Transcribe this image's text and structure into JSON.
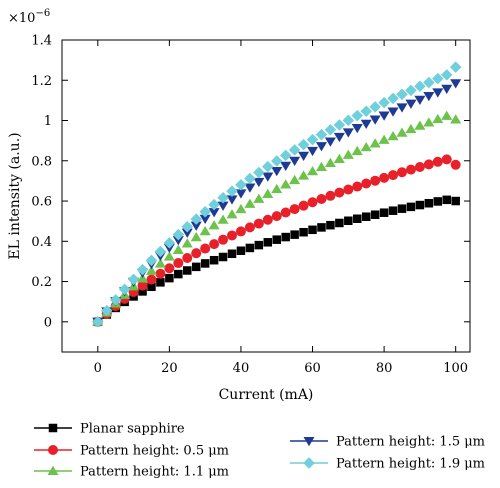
{
  "chart_data": {
    "type": "scatter",
    "title": "",
    "xlabel": "Current (mA)",
    "ylabel": "EL intensity (a.u.)",
    "y_multiplier": "×10",
    "y_exponent": "−6",
    "xlim": [
      -10,
      104
    ],
    "ylim": [
      -0.15,
      1.4
    ],
    "x_ticks": [
      0,
      20,
      40,
      60,
      80,
      100
    ],
    "x_tick_labels": [
      "0",
      "20",
      "40",
      "60",
      "80",
      "100"
    ],
    "y_ticks": [
      0,
      0.2,
      0.4,
      0.6,
      0.8,
      1.0,
      1.2,
      1.4
    ],
    "y_tick_labels": [
      "0",
      "0.2",
      "0.4",
      "0.6",
      "0.8",
      "1",
      "1.2",
      "1.4"
    ],
    "grid": false,
    "legend_position": "bottom",
    "x": [
      0,
      2.5,
      5,
      7.5,
      10,
      12.5,
      15,
      17.5,
      20,
      22.5,
      25,
      27.5,
      30,
      32.5,
      35,
      37.5,
      40,
      42.5,
      45,
      47.5,
      50,
      52.5,
      55,
      57.5,
      60,
      62.5,
      65,
      67.5,
      70,
      72.5,
      75,
      77.5,
      80,
      82.5,
      85,
      87.5,
      90,
      92.5,
      95,
      97.5,
      100
    ],
    "series": [
      {
        "name": "Planar sapphire",
        "marker": "square",
        "color": "#000000",
        "values": [
          0.0,
          0.036,
          0.069,
          0.099,
          0.126,
          0.151,
          0.174,
          0.196,
          0.217,
          0.237,
          0.255,
          0.273,
          0.29,
          0.306,
          0.322,
          0.338,
          0.353,
          0.367,
          0.381,
          0.395,
          0.408,
          0.421,
          0.433,
          0.445,
          0.457,
          0.469,
          0.48,
          0.491,
          0.502,
          0.512,
          0.522,
          0.532,
          0.542,
          0.552,
          0.562,
          0.571,
          0.58,
          0.589,
          0.598,
          0.606,
          0.6
        ]
      },
      {
        "name": "Pattern height: 0.5 μm",
        "marker": "circle",
        "color": "#e8202a",
        "values": [
          0.0,
          0.04,
          0.078,
          0.114,
          0.148,
          0.18,
          0.21,
          0.239,
          0.266,
          0.292,
          0.317,
          0.341,
          0.364,
          0.386,
          0.408,
          0.429,
          0.449,
          0.469,
          0.488,
          0.507,
          0.525,
          0.543,
          0.56,
          0.577,
          0.594,
          0.61,
          0.626,
          0.642,
          0.657,
          0.672,
          0.687,
          0.701,
          0.715,
          0.729,
          0.743,
          0.756,
          0.769,
          0.782,
          0.795,
          0.807,
          0.78
        ]
      },
      {
        "name": "Pattern height: 1.1 μm",
        "marker": "triangle-up",
        "color": "#6cc24a",
        "values": [
          0.0,
          0.046,
          0.091,
          0.134,
          0.176,
          0.215,
          0.253,
          0.289,
          0.324,
          0.357,
          0.389,
          0.42,
          0.45,
          0.479,
          0.507,
          0.534,
          0.56,
          0.586,
          0.611,
          0.635,
          0.659,
          0.682,
          0.704,
          0.726,
          0.748,
          0.769,
          0.789,
          0.809,
          0.829,
          0.848,
          0.867,
          0.886,
          0.904,
          0.922,
          0.939,
          0.957,
          0.974,
          0.99,
          1.007,
          1.023,
          1.005
        ]
      },
      {
        "name": "Pattern height: 1.5 μm",
        "marker": "triangle-down",
        "color": "#1f3a93",
        "values": [
          0.0,
          0.052,
          0.103,
          0.152,
          0.199,
          0.244,
          0.287,
          0.328,
          0.368,
          0.406,
          0.443,
          0.478,
          0.512,
          0.545,
          0.577,
          0.608,
          0.638,
          0.667,
          0.695,
          0.722,
          0.749,
          0.775,
          0.8,
          0.825,
          0.849,
          0.873,
          0.896,
          0.919,
          0.941,
          0.963,
          0.984,
          1.005,
          1.025,
          1.045,
          1.065,
          1.084,
          1.103,
          1.122,
          1.14,
          1.158,
          1.185
        ]
      },
      {
        "name": "Pattern height: 1.9 μm",
        "marker": "diamond",
        "color": "#6fcfdc",
        "values": [
          0.0,
          0.055,
          0.109,
          0.161,
          0.211,
          0.259,
          0.305,
          0.349,
          0.392,
          0.433,
          0.472,
          0.51,
          0.547,
          0.582,
          0.616,
          0.649,
          0.681,
          0.712,
          0.742,
          0.771,
          0.799,
          0.827,
          0.854,
          0.88,
          0.905,
          0.93,
          0.954,
          0.978,
          1.001,
          1.024,
          1.046,
          1.068,
          1.089,
          1.11,
          1.13,
          1.15,
          1.17,
          1.189,
          1.208,
          1.227,
          1.265
        ]
      }
    ]
  }
}
